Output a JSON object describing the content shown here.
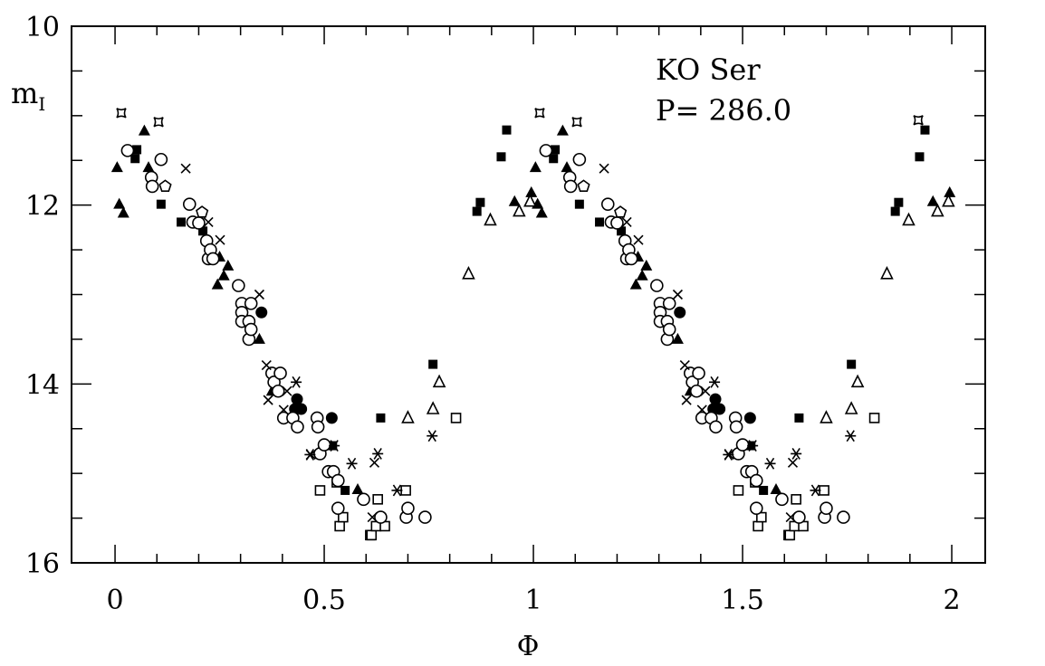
{
  "chart_data": {
    "type": "scatter",
    "title": "",
    "annotation": {
      "line1": "KO Ser",
      "line2": "P= 286.0"
    },
    "xlabel": "Φ",
    "ylabel": "m",
    "ylabel_subscript": "I",
    "xlim": [
      -0.104,
      2.08
    ],
    "ylim": [
      16,
      10
    ],
    "y_inverted": true,
    "x_ticks": [
      "0",
      "0.5",
      "1",
      "1.5",
      "2"
    ],
    "x_tick_values": [
      0,
      0.5,
      1,
      1.5,
      2
    ],
    "y_ticks": [
      "10",
      "12",
      "14",
      "16"
    ],
    "y_tick_values": [
      10,
      12,
      14,
      16
    ],
    "grid": false,
    "color": "#000000",
    "series": [
      {
        "marker": "open-star4",
        "points": [
          [
            0.015,
            10.97
          ],
          [
            0.104,
            11.07
          ],
          [
            1.015,
            10.97
          ],
          [
            1.104,
            11.07
          ],
          [
            1.92,
            11.05
          ]
        ]
      },
      {
        "marker": "filled-triangle",
        "points": [
          [
            0.005,
            11.58
          ],
          [
            0.01,
            11.99
          ],
          [
            0.02,
            12.09
          ],
          [
            0.07,
            11.17
          ],
          [
            0.08,
            11.58
          ],
          [
            0.245,
            12.89
          ],
          [
            0.25,
            12.58
          ],
          [
            0.26,
            12.79
          ],
          [
            0.27,
            12.68
          ],
          [
            0.345,
            13.5
          ],
          [
            0.375,
            14.08
          ],
          [
            0.58,
            15.18
          ],
          [
            0.955,
            11.96
          ],
          [
            0.995,
            11.86
          ],
          [
            1.005,
            11.58
          ],
          [
            1.01,
            11.99
          ],
          [
            1.02,
            12.09
          ],
          [
            1.07,
            11.17
          ],
          [
            1.08,
            11.58
          ],
          [
            1.245,
            12.89
          ],
          [
            1.25,
            12.58
          ],
          [
            1.26,
            12.79
          ],
          [
            1.27,
            12.68
          ],
          [
            1.345,
            13.5
          ],
          [
            1.375,
            14.08
          ],
          [
            1.58,
            15.18
          ],
          [
            1.955,
            11.96
          ],
          [
            1.995,
            11.86
          ]
        ]
      },
      {
        "marker": "open-triangle",
        "points": [
          [
            0.7,
            14.38
          ],
          [
            0.76,
            14.28
          ],
          [
            0.775,
            13.98
          ],
          [
            0.845,
            12.77
          ],
          [
            0.897,
            12.17
          ],
          [
            0.966,
            12.07
          ],
          [
            0.992,
            11.96
          ],
          [
            1.7,
            14.38
          ],
          [
            1.76,
            14.28
          ],
          [
            1.775,
            13.98
          ],
          [
            1.845,
            12.77
          ],
          [
            1.897,
            12.17
          ],
          [
            1.966,
            12.07
          ],
          [
            1.992,
            11.96
          ]
        ]
      },
      {
        "marker": "filled-square",
        "points": [
          [
            0.048,
            11.48
          ],
          [
            0.052,
            11.38
          ],
          [
            0.11,
            11.99
          ],
          [
            0.158,
            12.19
          ],
          [
            0.21,
            12.29
          ],
          [
            0.52,
            14.69
          ],
          [
            0.55,
            15.19
          ],
          [
            0.635,
            14.38
          ],
          [
            0.76,
            13.78
          ],
          [
            0.865,
            12.07
          ],
          [
            0.873,
            11.97
          ],
          [
            0.923,
            11.46
          ],
          [
            0.936,
            11.16
          ],
          [
            1.048,
            11.48
          ],
          [
            1.052,
            11.38
          ],
          [
            1.11,
            11.99
          ],
          [
            1.158,
            12.19
          ],
          [
            1.21,
            12.29
          ],
          [
            1.52,
            14.69
          ],
          [
            1.55,
            15.19
          ],
          [
            1.635,
            14.38
          ],
          [
            1.76,
            13.78
          ],
          [
            1.865,
            12.07
          ],
          [
            1.873,
            11.97
          ],
          [
            1.923,
            11.46
          ],
          [
            1.936,
            11.16
          ]
        ]
      },
      {
        "marker": "filled-circle",
        "points": [
          [
            0.35,
            13.2
          ],
          [
            0.43,
            14.28
          ],
          [
            0.435,
            14.17
          ],
          [
            0.445,
            14.28
          ],
          [
            0.518,
            14.38
          ],
          [
            1.35,
            13.2
          ],
          [
            1.43,
            14.28
          ],
          [
            1.435,
            14.17
          ],
          [
            1.445,
            14.28
          ],
          [
            1.518,
            14.38
          ]
        ]
      },
      {
        "marker": "open-square",
        "points": [
          [
            0.49,
            15.19
          ],
          [
            0.53,
            15.1
          ],
          [
            0.537,
            15.59
          ],
          [
            0.545,
            15.49
          ],
          [
            0.61,
            15.69
          ],
          [
            0.613,
            15.69
          ],
          [
            0.624,
            15.59
          ],
          [
            0.628,
            15.29
          ],
          [
            0.645,
            15.59
          ],
          [
            0.695,
            15.19
          ],
          [
            0.815,
            14.38
          ],
          [
            1.49,
            15.19
          ],
          [
            1.53,
            15.1
          ],
          [
            1.537,
            15.59
          ],
          [
            1.545,
            15.49
          ],
          [
            1.61,
            15.69
          ],
          [
            1.613,
            15.69
          ],
          [
            1.624,
            15.59
          ],
          [
            1.628,
            15.29
          ],
          [
            1.645,
            15.59
          ],
          [
            1.695,
            15.19
          ],
          [
            1.815,
            14.38
          ]
        ]
      },
      {
        "marker": "open-circle",
        "points": [
          [
            0.03,
            11.39
          ],
          [
            0.087,
            11.69
          ],
          [
            0.089,
            11.79
          ],
          [
            0.11,
            11.49
          ],
          [
            0.178,
            11.99
          ],
          [
            0.186,
            12.19
          ],
          [
            0.2,
            12.2
          ],
          [
            0.219,
            12.4
          ],
          [
            0.223,
            12.6
          ],
          [
            0.228,
            12.5
          ],
          [
            0.234,
            12.6
          ],
          [
            0.295,
            12.9
          ],
          [
            0.303,
            13.1
          ],
          [
            0.303,
            13.2
          ],
          [
            0.303,
            13.3
          ],
          [
            0.32,
            13.3
          ],
          [
            0.32,
            13.5
          ],
          [
            0.325,
            13.1
          ],
          [
            0.325,
            13.39
          ],
          [
            0.375,
            13.88
          ],
          [
            0.38,
            13.98
          ],
          [
            0.39,
            14.08
          ],
          [
            0.395,
            13.88
          ],
          [
            0.403,
            14.38
          ],
          [
            0.425,
            14.38
          ],
          [
            0.436,
            14.48
          ],
          [
            0.483,
            14.38
          ],
          [
            0.485,
            14.48
          ],
          [
            0.49,
            14.78
          ],
          [
            0.5,
            14.68
          ],
          [
            0.51,
            14.98
          ],
          [
            0.522,
            14.98
          ],
          [
            0.533,
            15.08
          ],
          [
            0.533,
            15.39
          ],
          [
            0.594,
            15.29
          ],
          [
            0.635,
            15.49
          ],
          [
            0.696,
            15.49
          ],
          [
            0.7,
            15.39
          ],
          [
            0.741,
            15.49
          ],
          [
            1.03,
            11.39
          ],
          [
            1.087,
            11.69
          ],
          [
            1.089,
            11.79
          ],
          [
            1.11,
            11.49
          ],
          [
            1.178,
            11.99
          ],
          [
            1.186,
            12.19
          ],
          [
            1.2,
            12.2
          ],
          [
            1.219,
            12.4
          ],
          [
            1.223,
            12.6
          ],
          [
            1.228,
            12.5
          ],
          [
            1.234,
            12.6
          ],
          [
            1.295,
            12.9
          ],
          [
            1.303,
            13.1
          ],
          [
            1.303,
            13.2
          ],
          [
            1.303,
            13.3
          ],
          [
            1.32,
            13.3
          ],
          [
            1.32,
            13.5
          ],
          [
            1.325,
            13.1
          ],
          [
            1.325,
            13.39
          ],
          [
            1.375,
            13.88
          ],
          [
            1.38,
            13.98
          ],
          [
            1.39,
            14.08
          ],
          [
            1.395,
            13.88
          ],
          [
            1.403,
            14.38
          ],
          [
            1.425,
            14.38
          ],
          [
            1.436,
            14.48
          ],
          [
            1.483,
            14.38
          ],
          [
            1.485,
            14.48
          ],
          [
            1.49,
            14.78
          ],
          [
            1.5,
            14.68
          ],
          [
            1.51,
            14.98
          ],
          [
            1.522,
            14.98
          ],
          [
            1.533,
            15.08
          ],
          [
            1.533,
            15.39
          ],
          [
            1.594,
            15.29
          ],
          [
            1.635,
            15.49
          ],
          [
            1.696,
            15.49
          ],
          [
            1.7,
            15.39
          ],
          [
            1.741,
            15.49
          ]
        ]
      },
      {
        "marker": "open-pentagon",
        "points": [
          [
            0.12,
            11.79
          ],
          [
            0.208,
            12.08
          ],
          [
            1.12,
            11.79
          ],
          [
            1.208,
            12.08
          ]
        ]
      },
      {
        "marker": "cross",
        "points": [
          [
            0.169,
            11.59
          ],
          [
            0.223,
            12.19
          ],
          [
            0.251,
            12.39
          ],
          [
            0.345,
            13.0
          ],
          [
            0.362,
            13.79
          ],
          [
            0.366,
            14.18
          ],
          [
            0.403,
            14.29
          ],
          [
            0.411,
            14.08
          ],
          [
            0.468,
            14.79
          ],
          [
            0.615,
            15.49
          ],
          [
            0.62,
            14.88
          ],
          [
            1.169,
            11.59
          ],
          [
            1.223,
            12.19
          ],
          [
            1.251,
            12.39
          ],
          [
            1.345,
            13.0
          ],
          [
            1.362,
            13.79
          ],
          [
            1.366,
            14.18
          ],
          [
            1.403,
            14.29
          ],
          [
            1.411,
            14.08
          ],
          [
            1.468,
            14.79
          ],
          [
            1.615,
            15.49
          ],
          [
            1.62,
            14.88
          ]
        ]
      },
      {
        "marker": "asterisk",
        "points": [
          [
            0.433,
            13.98
          ],
          [
            0.466,
            14.79
          ],
          [
            0.524,
            14.69
          ],
          [
            0.566,
            14.89
          ],
          [
            0.628,
            14.78
          ],
          [
            0.674,
            15.19
          ],
          [
            0.758,
            14.58
          ],
          [
            1.433,
            13.98
          ],
          [
            1.466,
            14.79
          ],
          [
            1.524,
            14.69
          ],
          [
            1.566,
            14.89
          ],
          [
            1.628,
            14.78
          ],
          [
            1.674,
            15.19
          ],
          [
            1.758,
            14.58
          ]
        ]
      }
    ]
  }
}
